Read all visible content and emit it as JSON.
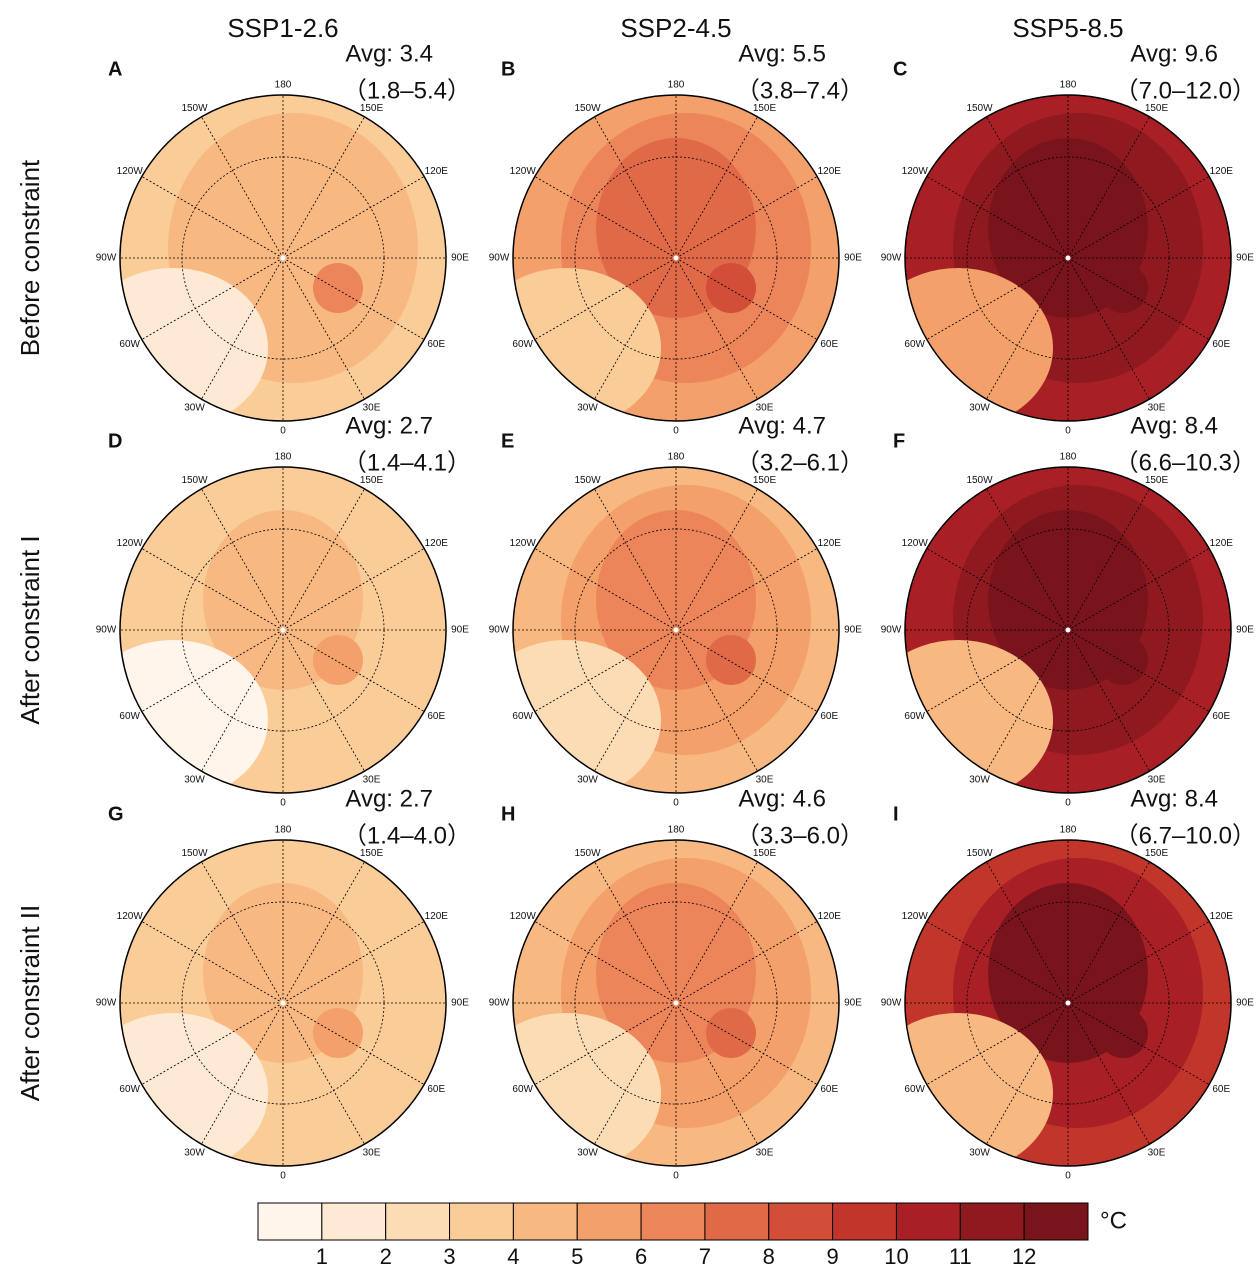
{
  "columns": [
    "SSP1-2.6",
    "SSP2-4.5",
    "SSP5-8.5"
  ],
  "rows": [
    "Before constraint",
    "After constraint I",
    "After constraint II"
  ],
  "longitude_labels": [
    "0",
    "30E",
    "60E",
    "90E",
    "120E",
    "150E",
    "180",
    "150W",
    "120W",
    "90W",
    "60W",
    "30W"
  ],
  "panels": [
    {
      "letter": "A",
      "avg": "Avg: 3.4",
      "range": "（1.8–5.4）"
    },
    {
      "letter": "B",
      "avg": "Avg: 5.5",
      "range": "（3.8–7.4）"
    },
    {
      "letter": "C",
      "avg": "Avg: 9.6",
      "range": "（7.0–12.0）"
    },
    {
      "letter": "D",
      "avg": "Avg: 2.7",
      "range": "（1.4–4.1）"
    },
    {
      "letter": "E",
      "avg": "Avg: 4.7",
      "range": "（3.2–6.1）"
    },
    {
      "letter": "F",
      "avg": "Avg: 8.4",
      "range": "（6.6–10.3）"
    },
    {
      "letter": "G",
      "avg": "Avg: 2.7",
      "range": "（1.4–4.0）"
    },
    {
      "letter": "H",
      "avg": "Avg: 4.6",
      "range": "（3.3–6.0）"
    },
    {
      "letter": "I",
      "avg": "Avg: 8.4",
      "range": "（6.7–10.0）"
    }
  ],
  "colorbar": {
    "ticks": [
      1,
      2,
      3,
      4,
      5,
      6,
      7,
      8,
      9,
      10,
      11,
      12
    ],
    "unit": "°C",
    "colors": [
      "#fff5eb",
      "#fde9d4",
      "#fbdcb5",
      "#f9cc98",
      "#f7b882",
      "#f3a06a",
      "#ec8559",
      "#e06a48",
      "#d24e38",
      "#c2352b",
      "#a81f25",
      "#8e1a20",
      "#7a141c"
    ]
  }
}
